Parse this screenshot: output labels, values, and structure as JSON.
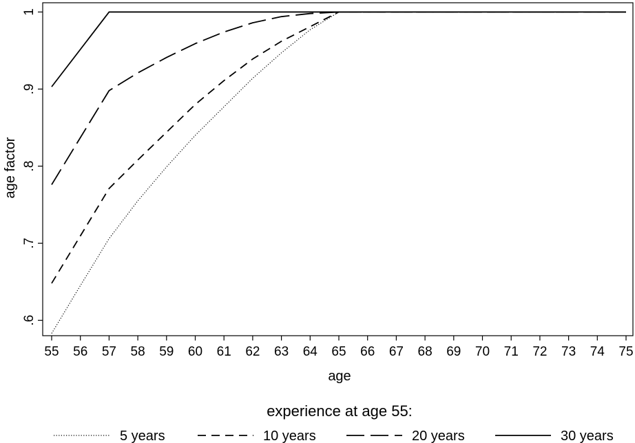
{
  "chart_data": {
    "type": "line",
    "xlabel": "age",
    "ylabel": "age factor",
    "xlim": [
      55,
      75
    ],
    "ylim": [
      0.58,
      1.012
    ],
    "x_ticks": [
      55,
      56,
      57,
      58,
      59,
      60,
      61,
      62,
      63,
      64,
      65,
      66,
      67,
      68,
      69,
      70,
      71,
      72,
      73,
      74,
      75
    ],
    "x_tick_labels": [
      "55",
      "56",
      "57",
      "58",
      "59",
      "60",
      "61",
      "62",
      "63",
      "64",
      "65",
      "66",
      "67",
      "68",
      "69",
      "70",
      "71",
      "72",
      "73",
      "74",
      "75"
    ],
    "y_ticks": [
      0.6,
      0.7,
      0.8,
      0.9,
      1.0
    ],
    "y_tick_labels": [
      ".6",
      ".7",
      ".8",
      ".9",
      "1"
    ],
    "grid": false,
    "legend": {
      "title": "experience at age 55:",
      "placement": "bottom"
    },
    "series": [
      {
        "name": "5 years",
        "style": "dotted",
        "x": [
          55,
          56,
          57,
          58,
          59,
          60,
          61,
          62,
          63,
          64,
          65,
          75
        ],
        "y": [
          0.583,
          0.645,
          0.706,
          0.755,
          0.799,
          0.84,
          0.877,
          0.914,
          0.947,
          0.977,
          1.0,
          1.0
        ]
      },
      {
        "name": "10 years",
        "style": "dashed",
        "x": [
          55,
          57,
          58,
          59,
          60,
          61,
          62,
          63,
          64,
          65,
          75
        ],
        "y": [
          0.648,
          0.771,
          0.808,
          0.844,
          0.88,
          0.911,
          0.939,
          0.962,
          0.981,
          1.0,
          1.0
        ]
      },
      {
        "name": "20 years",
        "style": "long-dashed",
        "x": [
          55,
          57,
          58,
          59,
          60,
          61,
          62,
          63,
          64,
          65,
          75
        ],
        "y": [
          0.776,
          0.898,
          0.921,
          0.941,
          0.959,
          0.974,
          0.986,
          0.994,
          0.998,
          1.0,
          1.0
        ]
      },
      {
        "name": "30 years",
        "style": "solid",
        "x": [
          55,
          57,
          75
        ],
        "y": [
          0.903,
          1.0,
          1.0
        ]
      }
    ]
  }
}
